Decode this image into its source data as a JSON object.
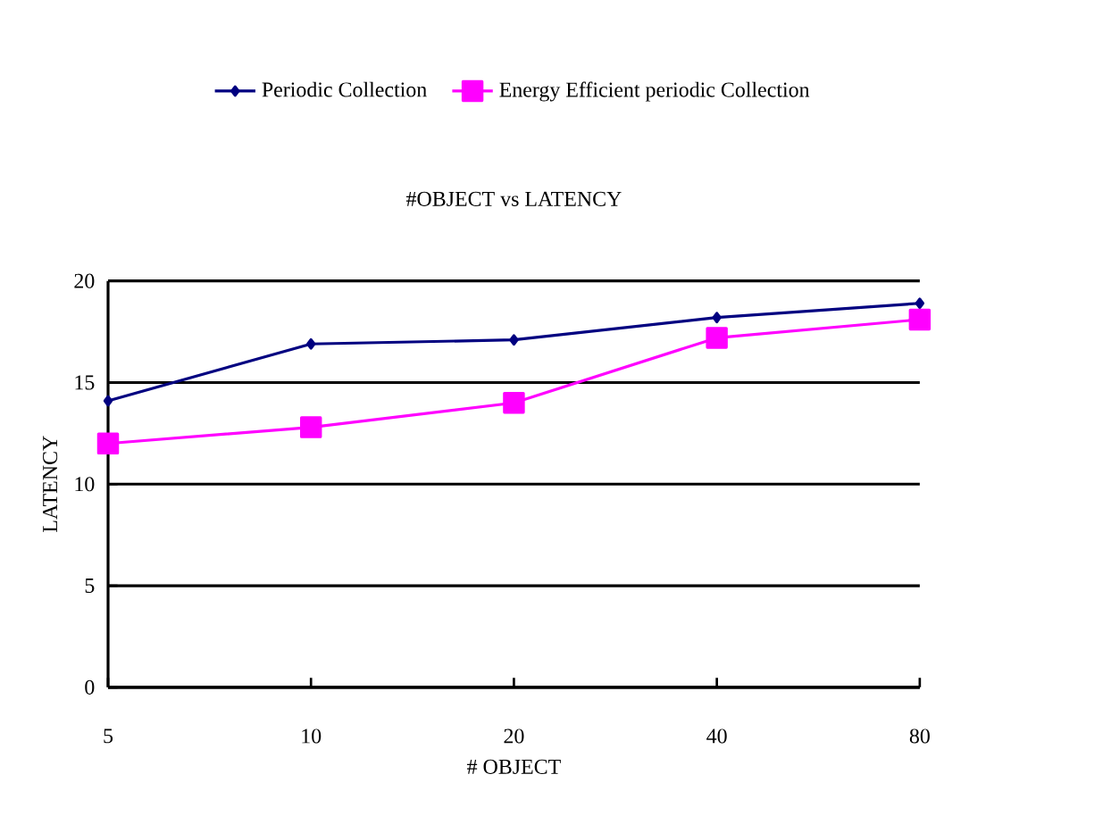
{
  "chart_data": {
    "type": "line",
    "title": "#OBJECT vs LATENCY",
    "xlabel": "# OBJECT",
    "ylabel": "LATENCY",
    "categories": [
      "5",
      "10",
      "20",
      "40",
      "80"
    ],
    "series": [
      {
        "name": "Periodic Collection",
        "color": "#000080",
        "marker": "diamond",
        "values": [
          14.1,
          16.9,
          17.1,
          18.2,
          18.9
        ]
      },
      {
        "name": "Energy Efficient periodic Collection",
        "color": "#ff00ff",
        "marker": "square",
        "values": [
          12.0,
          12.8,
          14.0,
          17.2,
          18.1
        ]
      }
    ],
    "ylim": [
      0,
      20
    ],
    "yticks": [
      0,
      5,
      10,
      15,
      20
    ],
    "grid": "y",
    "legend": "top",
    "line_style": "solid"
  }
}
